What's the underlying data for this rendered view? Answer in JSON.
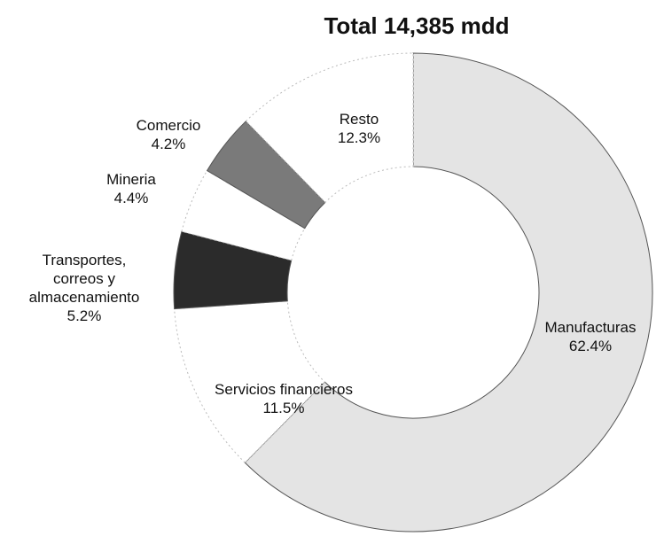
{
  "chart_data": {
    "type": "donut",
    "title": "Total 14,385 mdd",
    "categories": [
      "Manufacturas",
      "Servicios financieros",
      "Transportes, correos y almacenamiento",
      "Mineria",
      "Comercio",
      "Resto"
    ],
    "values": [
      62.4,
      11.5,
      5.2,
      4.4,
      4.2,
      12.3
    ],
    "value_labels": [
      "62.4%",
      "11.5%",
      "5.2%",
      "4.4%",
      "4.2%",
      "12.3%"
    ],
    "colors": [
      "#e4e4e4",
      "#ffffff",
      "#2b2b2b",
      "#ffffff",
      "#7a7a7a",
      "#ffffff"
    ]
  }
}
